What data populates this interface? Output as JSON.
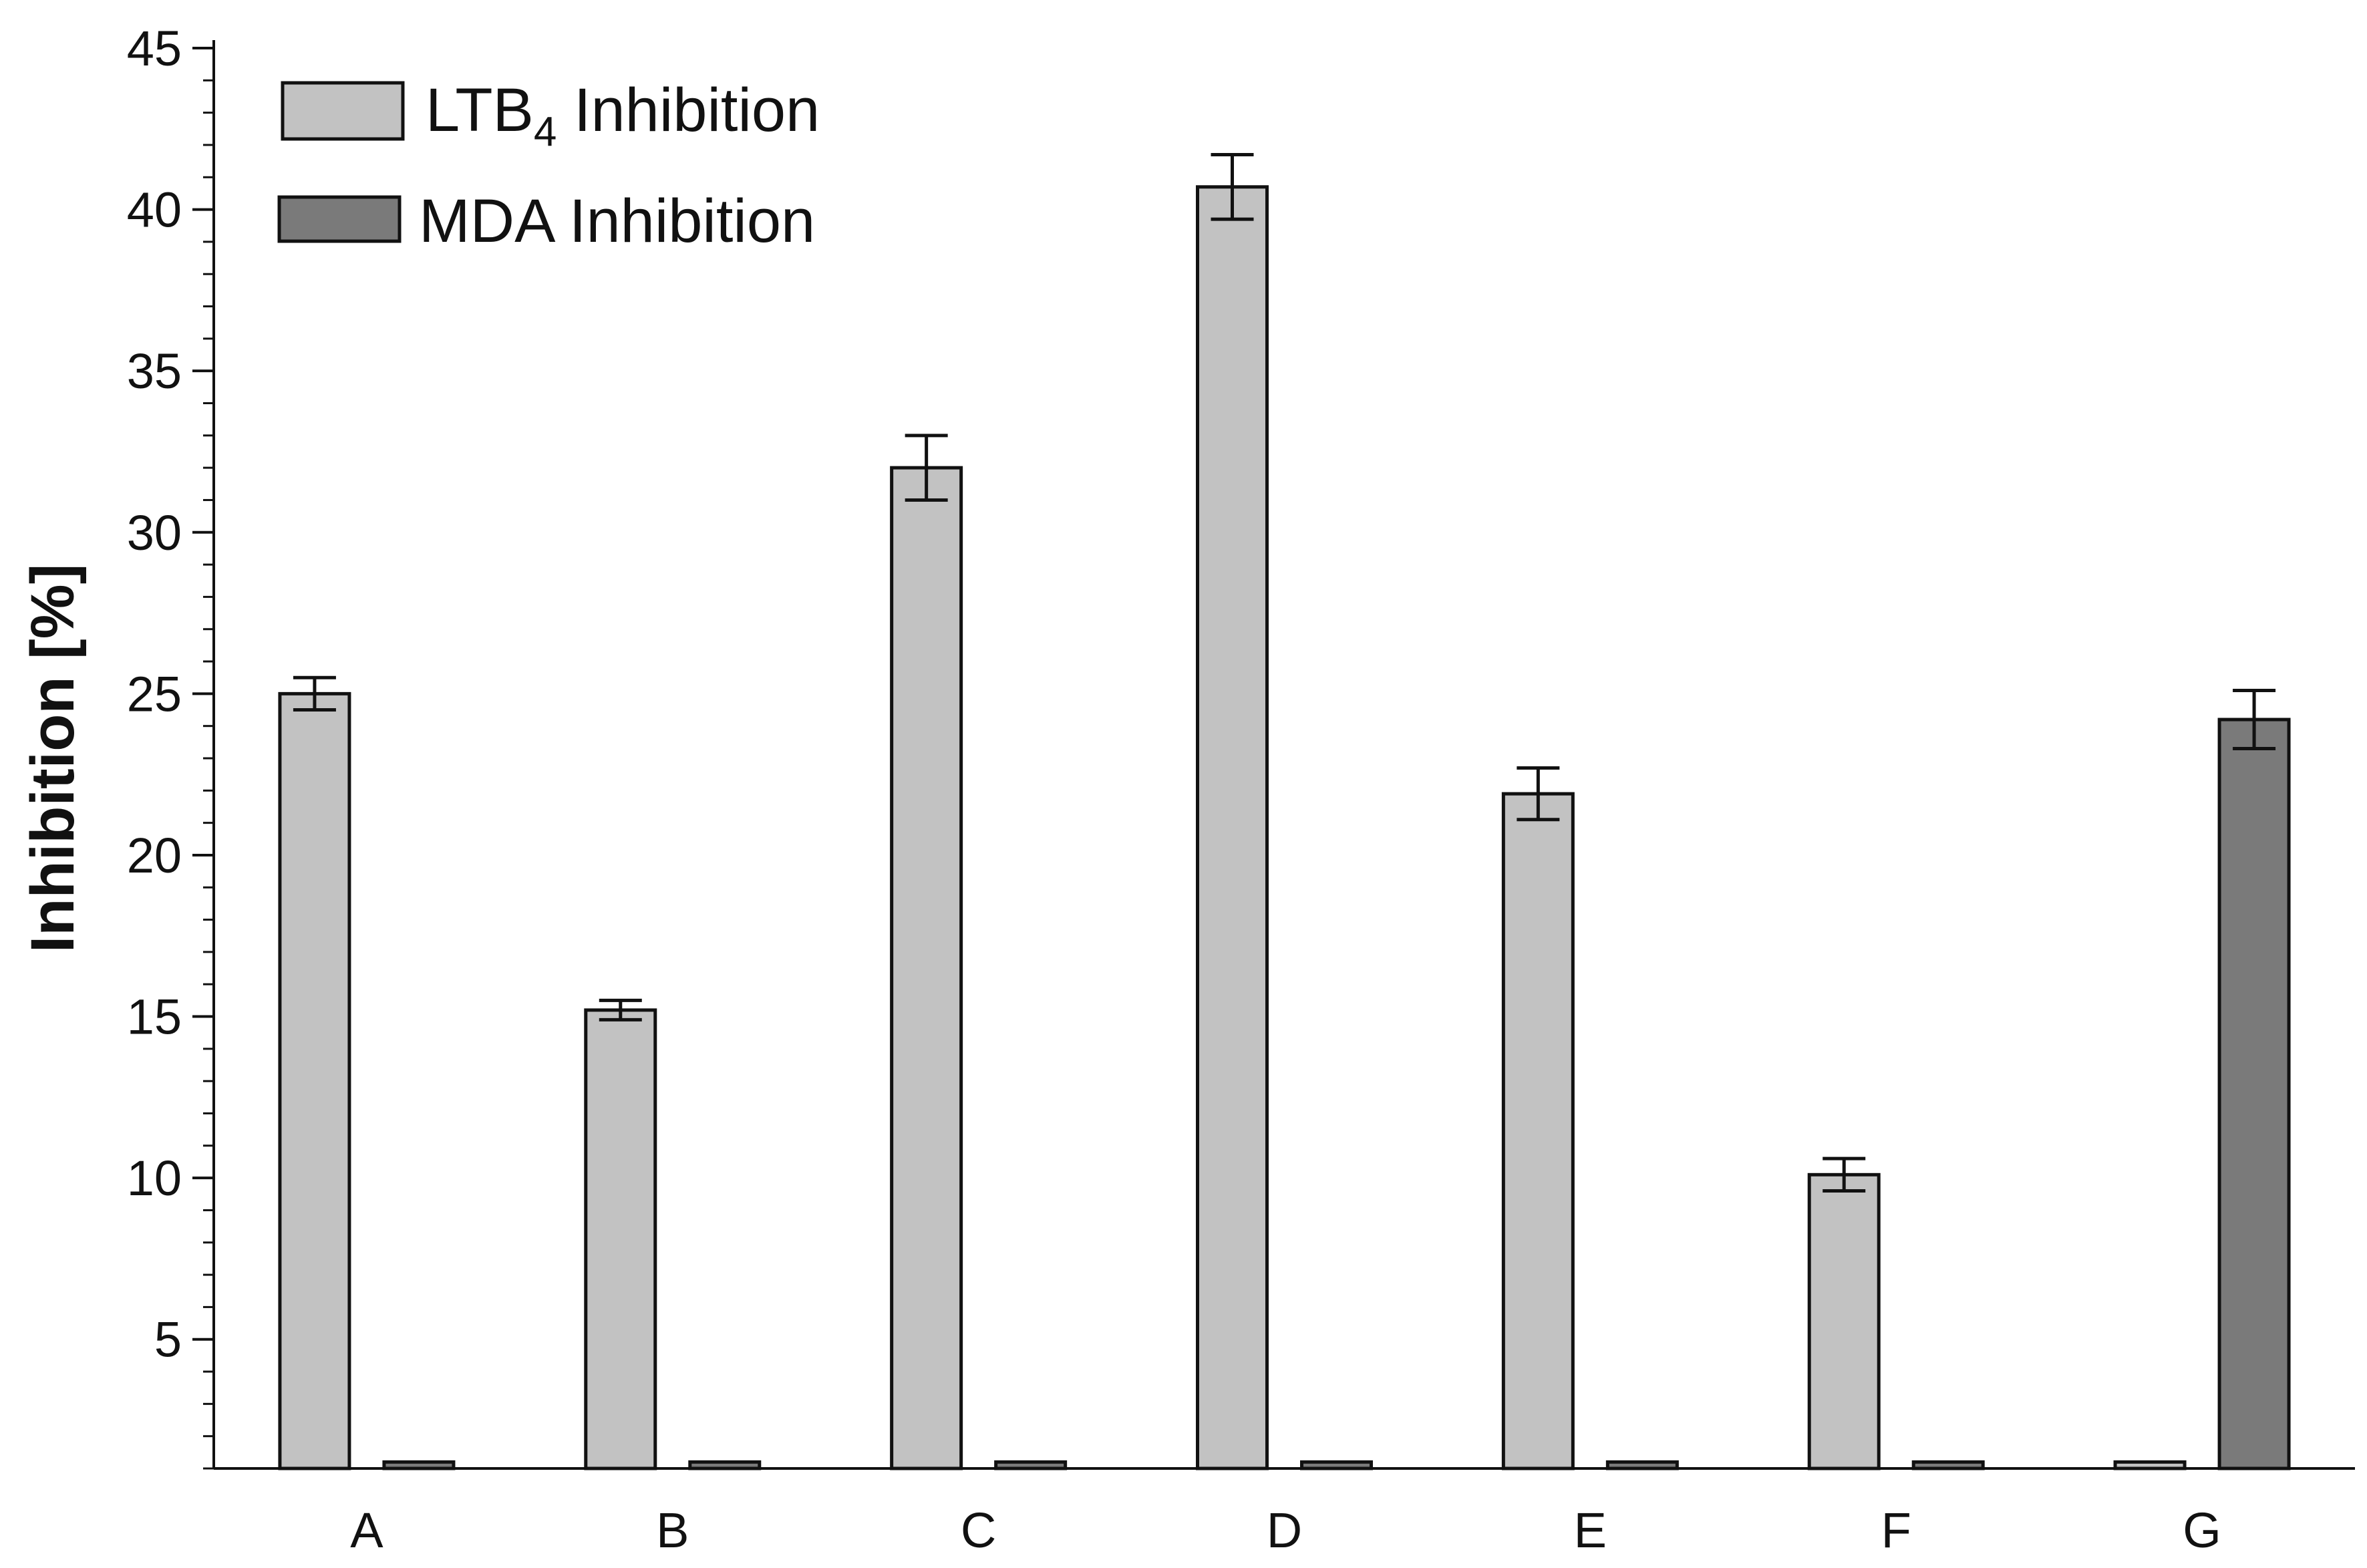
{
  "chart_data": {
    "type": "bar",
    "title": "",
    "xlabel": "",
    "ylabel": "Inhibition [%]",
    "ylim": [
      1,
      45
    ],
    "yticks": [
      5,
      10,
      15,
      20,
      25,
      30,
      35,
      40,
      45
    ],
    "ytick_labels": [
      "5",
      "10",
      "15",
      "20",
      "25",
      "30",
      "35",
      "40",
      "45"
    ],
    "grid": false,
    "legend_position": "top-left",
    "categories": [
      "A",
      "B",
      "C",
      "D",
      "E",
      "F",
      "G"
    ],
    "series": [
      {
        "name": "LTB4 Inhibition",
        "name_main": "LTB",
        "name_sub": "4",
        "name_rest": " Inhibition",
        "color": "#c2c2c2",
        "values": [
          25.0,
          15.2,
          32.0,
          40.7,
          21.9,
          10.1,
          1.2
        ],
        "errors": [
          0.5,
          0.3,
          1.0,
          1.0,
          0.8,
          0.5,
          null
        ]
      },
      {
        "name": "MDA Inhibition",
        "color": "#7a7a7a",
        "values": [
          1.2,
          1.2,
          1.2,
          1.2,
          1.2,
          1.2,
          24.2
        ],
        "errors": [
          null,
          null,
          null,
          null,
          null,
          null,
          0.9
        ]
      }
    ]
  }
}
